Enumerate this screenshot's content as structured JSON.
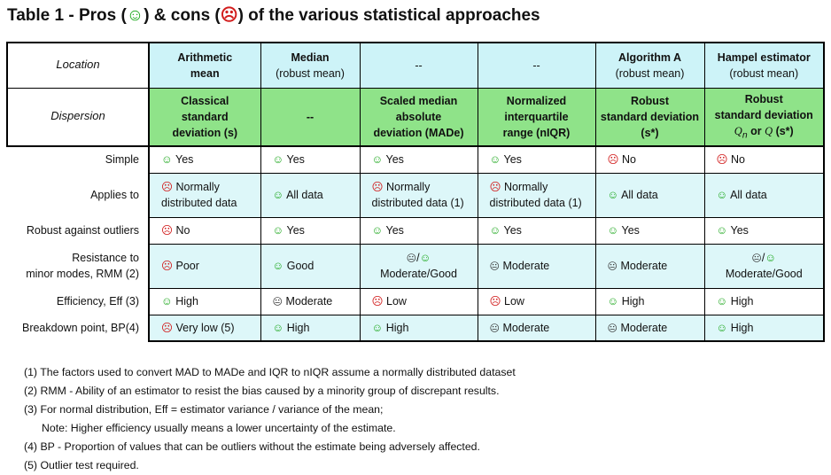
{
  "title": {
    "prefix": "Table 1 - Pros (",
    "pro_icon": "☺",
    "mid": ") & cons (",
    "con_icon": "☹",
    "suffix": ") of the various statistical approaches"
  },
  "header": {
    "location_label": "Location",
    "dispersion_label": "Dispersion",
    "location": [
      {
        "l1": "Arithmetic",
        "l2": "mean",
        "bold": true
      },
      {
        "l1": "Median",
        "l2": "(robust mean)",
        "bold": "first"
      },
      {
        "l1": "--",
        "l2": ""
      },
      {
        "l1": "--",
        "l2": ""
      },
      {
        "l1": "Algorithm A",
        "l2": "(robust mean)",
        "bold": "first"
      },
      {
        "l1": "Hampel estimator",
        "l2": "(robust mean)",
        "bold": "first"
      }
    ],
    "dispersion": [
      {
        "l1": "Classical",
        "l2": "standard",
        "l3": "deviation (s)"
      },
      {
        "l1": "--",
        "l2": "",
        "l3": ""
      },
      {
        "l1": "Scaled median",
        "l2": "absolute",
        "l3": "deviation (MADe)"
      },
      {
        "l1": "Normalized",
        "l2": "interquartile",
        "l3": "range (nIQR)"
      },
      {
        "l1": "Robust",
        "l2": "standard deviation",
        "l3": "(s*)"
      },
      {
        "l1": "Robust",
        "l2": "standard deviation",
        "l3a": "Q",
        "l3n": "n",
        "l3b": " or ",
        "l3c": "Q",
        "l3d": " (s*)"
      }
    ]
  },
  "rows": [
    {
      "label1": "Simple",
      "label2": "",
      "cells": [
        {
          "icon": "pro",
          "text": "Yes"
        },
        {
          "icon": "pro",
          "text": "Yes"
        },
        {
          "icon": "pro",
          "text": "Yes"
        },
        {
          "icon": "pro",
          "text": "Yes"
        },
        {
          "icon": "con",
          "text": "No"
        },
        {
          "icon": "con",
          "text": "No"
        }
      ]
    },
    {
      "label1": "Applies to",
      "label2": "",
      "cells": [
        {
          "icon": "con",
          "text": "Normally",
          "text2": "distributed data"
        },
        {
          "icon": "pro",
          "text": "All data"
        },
        {
          "icon": "con",
          "text": "Normally",
          "text2": "distributed data (1)"
        },
        {
          "icon": "con",
          "text": "Normally",
          "text2": "distributed data (1)"
        },
        {
          "icon": "pro",
          "text": "All data"
        },
        {
          "icon": "pro",
          "text": "All data"
        }
      ]
    },
    {
      "label1": "Robust against outliers",
      "label2": "",
      "cells": [
        {
          "icon": "con",
          "text": "No"
        },
        {
          "icon": "pro",
          "text": "Yes"
        },
        {
          "icon": "pro",
          "text": "Yes"
        },
        {
          "icon": "pro",
          "text": "Yes"
        },
        {
          "icon": "pro",
          "text": "Yes"
        },
        {
          "icon": "pro",
          "text": "Yes"
        }
      ]
    },
    {
      "label1": "Resistance to",
      "label2": "minor modes, RMM (2)",
      "cells": [
        {
          "icon": "con",
          "text": "Poor"
        },
        {
          "icon": "pro",
          "text": "Good"
        },
        {
          "icon": "neutral/pro",
          "text": "Moderate/Good"
        },
        {
          "icon": "neutral",
          "text": "Moderate"
        },
        {
          "icon": "neutral",
          "text": "Moderate"
        },
        {
          "icon": "neutral/pro",
          "text": "Moderate/Good"
        }
      ]
    },
    {
      "label1": "Efficiency, Eff (3)",
      "label2": "",
      "cells": [
        {
          "icon": "pro",
          "text": "High"
        },
        {
          "icon": "neutral",
          "text": "Moderate"
        },
        {
          "icon": "con",
          "text": "Low"
        },
        {
          "icon": "con",
          "text": "Low"
        },
        {
          "icon": "pro",
          "text": "High"
        },
        {
          "icon": "pro",
          "text": "High"
        }
      ]
    },
    {
      "label1": "Breakdown point, BP(4)",
      "label2": "",
      "cells": [
        {
          "icon": "con",
          "text": "Very low (5)"
        },
        {
          "icon": "pro",
          "text": "High"
        },
        {
          "icon": "pro",
          "text": "High"
        },
        {
          "icon": "neutral",
          "text": "Moderate"
        },
        {
          "icon": "neutral",
          "text": "Moderate"
        },
        {
          "icon": "pro",
          "text": "High"
        }
      ]
    }
  ],
  "notes": [
    "(1) The factors used to convert MAD to MADe and IQR to nIQR assume a normally distributed dataset",
    "(2) RMM - Ability of an estimator to resist the bias caused by a minority group of discrepant results.",
    "(3) For normal distribution, Eff = estimator variance / variance of the mean;",
    "Note: Higher efficiency usually means a lower uncertainty of the estimate.",
    "(4) BP - Proportion of values that can be outliers without the estimate being adversely affected.",
    "(5) Outlier test required."
  ],
  "colors": {
    "location_bg": "#cdf3f8",
    "dispersion_bg": "#8fe389",
    "row_alt_bg": "#ddf7f9",
    "pro": "#1ea81e",
    "con": "#d21e1e",
    "neutral": "#333333"
  }
}
